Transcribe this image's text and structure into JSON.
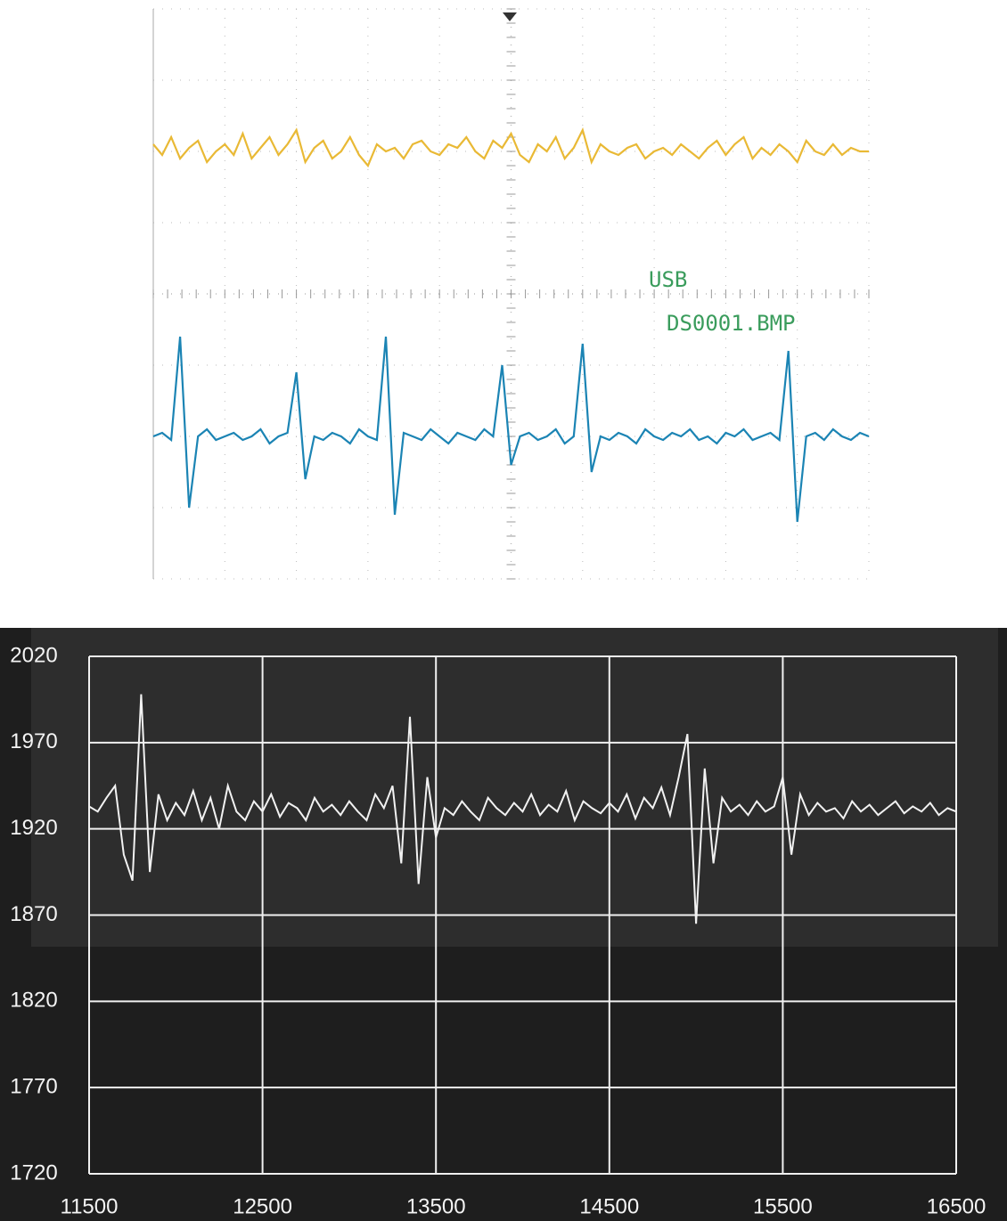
{
  "chart_data": [
    {
      "type": "line",
      "annotations": [
        "USB",
        "DS0001.BMP"
      ],
      "xlim": [
        0,
        10
      ],
      "ylim": [
        -4,
        4
      ],
      "x": [
        0,
        0.125,
        0.25,
        0.375,
        0.5,
        0.625,
        0.75,
        0.875,
        1,
        1.125,
        1.25,
        1.375,
        1.5,
        1.625,
        1.75,
        1.875,
        2,
        2.125,
        2.25,
        2.375,
        2.5,
        2.625,
        2.75,
        2.875,
        3,
        3.125,
        3.25,
        3.375,
        3.5,
        3.625,
        3.75,
        3.875,
        4,
        4.125,
        4.25,
        4.375,
        4.5,
        4.625,
        4.75,
        4.875,
        5,
        5.125,
        5.25,
        5.375,
        5.5,
        5.625,
        5.75,
        5.875,
        6,
        6.125,
        6.25,
        6.375,
        6.5,
        6.625,
        6.75,
        6.875,
        7,
        7.125,
        7.25,
        7.375,
        7.5,
        7.625,
        7.75,
        7.875,
        8,
        8.125,
        8.25,
        8.375,
        8.5,
        8.625,
        8.75,
        8.875,
        9,
        9.125,
        9.25,
        9.375,
        9.5,
        9.625,
        9.75,
        9.875,
        10
      ],
      "series": [
        {
          "color": "#e9b935",
          "values": [
            2.1,
            1.95,
            2.2,
            1.9,
            2.05,
            2.15,
            1.85,
            2.0,
            2.1,
            1.95,
            2.25,
            1.9,
            2.05,
            2.2,
            1.95,
            2.1,
            2.3,
            1.85,
            2.05,
            2.15,
            1.9,
            2.0,
            2.2,
            1.95,
            1.8,
            2.1,
            2.0,
            2.05,
            1.9,
            2.1,
            2.15,
            2.0,
            1.95,
            2.1,
            2.05,
            2.2,
            2.0,
            1.9,
            2.15,
            2.05,
            2.25,
            1.95,
            1.85,
            2.1,
            2.0,
            2.2,
            1.9,
            2.05,
            2.3,
            1.85,
            2.1,
            2.0,
            1.95,
            2.05,
            2.1,
            1.9,
            2.0,
            2.05,
            1.95,
            2.1,
            2.0,
            1.9,
            2.05,
            2.15,
            1.95,
            2.1,
            2.2,
            1.9,
            2.05,
            1.95,
            2.1,
            2.0,
            1.85,
            2.15,
            2.0,
            1.95,
            2.1,
            1.95,
            2.05,
            2.0,
            2.0
          ]
        },
        {
          "color": "#1b84b4",
          "values": [
            -2.0,
            -1.95,
            -2.05,
            -0.6,
            -3.0,
            -2.0,
            -1.9,
            -2.05,
            -2.0,
            -1.95,
            -2.05,
            -2.0,
            -1.9,
            -2.1,
            -2.0,
            -1.95,
            -1.1,
            -2.6,
            -2.0,
            -2.05,
            -1.95,
            -2.0,
            -2.1,
            -1.9,
            -2.0,
            -2.05,
            -0.6,
            -3.1,
            -1.95,
            -2.0,
            -2.05,
            -1.9,
            -2.0,
            -2.1,
            -1.95,
            -2.0,
            -2.05,
            -1.9,
            -2.0,
            -1.0,
            -2.4,
            -2.0,
            -1.95,
            -2.05,
            -2.0,
            -1.9,
            -2.1,
            -2.0,
            -0.7,
            -2.5,
            -2.0,
            -2.05,
            -1.95,
            -2.0,
            -2.1,
            -1.9,
            -2.0,
            -2.05,
            -1.95,
            -2.0,
            -1.9,
            -2.05,
            -2.0,
            -2.1,
            -1.95,
            -2.0,
            -1.9,
            -2.05,
            -2.0,
            -1.95,
            -2.05,
            -0.8,
            -3.2,
            -2.0,
            -1.95,
            -2.05,
            -1.9,
            -2.0,
            -2.05,
            -1.95,
            -2.0
          ]
        }
      ]
    },
    {
      "type": "line",
      "xlim": [
        11500,
        16500
      ],
      "ylim": [
        1720,
        2020
      ],
      "xticks": [
        11500,
        12500,
        13500,
        14500,
        15500,
        16500
      ],
      "yticks": [
        1720,
        1770,
        1820,
        1870,
        1920,
        1970,
        2020
      ],
      "grid": true,
      "x": [
        11500,
        11550,
        11600,
        11650,
        11700,
        11750,
        11800,
        11850,
        11900,
        11950,
        12000,
        12050,
        12100,
        12150,
        12200,
        12250,
        12300,
        12350,
        12400,
        12450,
        12500,
        12550,
        12600,
        12650,
        12700,
        12750,
        12800,
        12850,
        12900,
        12950,
        13000,
        13050,
        13100,
        13150,
        13200,
        13250,
        13300,
        13350,
        13400,
        13450,
        13500,
        13550,
        13600,
        13650,
        13700,
        13750,
        13800,
        13850,
        13900,
        13950,
        14000,
        14050,
        14100,
        14150,
        14200,
        14250,
        14300,
        14350,
        14400,
        14450,
        14500,
        14550,
        14600,
        14650,
        14700,
        14750,
        14800,
        14850,
        14900,
        14950,
        15000,
        15050,
        15100,
        15150,
        15200,
        15250,
        15300,
        15350,
        15400,
        15450,
        15500,
        15550,
        15600,
        15650,
        15700,
        15750,
        15800,
        15850,
        15900,
        15950,
        16000,
        16050,
        16100,
        16150,
        16200,
        16250,
        16300,
        16350,
        16400,
        16450,
        16500
      ],
      "series": [
        {
          "color": "#f2f2f2",
          "values": [
            1933,
            1930,
            1938,
            1945,
            1905,
            1890,
            1998,
            1895,
            1940,
            1925,
            1935,
            1928,
            1942,
            1925,
            1938,
            1920,
            1945,
            1930,
            1925,
            1936,
            1930,
            1940,
            1927,
            1935,
            1932,
            1925,
            1938,
            1930,
            1934,
            1928,
            1936,
            1930,
            1925,
            1940,
            1932,
            1945,
            1900,
            1985,
            1888,
            1950,
            1915,
            1932,
            1928,
            1936,
            1930,
            1925,
            1938,
            1932,
            1928,
            1935,
            1930,
            1940,
            1928,
            1934,
            1930,
            1942,
            1925,
            1936,
            1932,
            1929,
            1935,
            1930,
            1940,
            1926,
            1938,
            1932,
            1944,
            1928,
            1950,
            1975,
            1865,
            1955,
            1900,
            1938,
            1930,
            1934,
            1928,
            1936,
            1930,
            1933,
            1950,
            1905,
            1940,
            1928,
            1935,
            1930,
            1932,
            1926,
            1936,
            1930,
            1934,
            1928,
            1932,
            1936,
            1929,
            1933,
            1930,
            1935,
            1928,
            1932,
            1930
          ]
        }
      ]
    }
  ]
}
